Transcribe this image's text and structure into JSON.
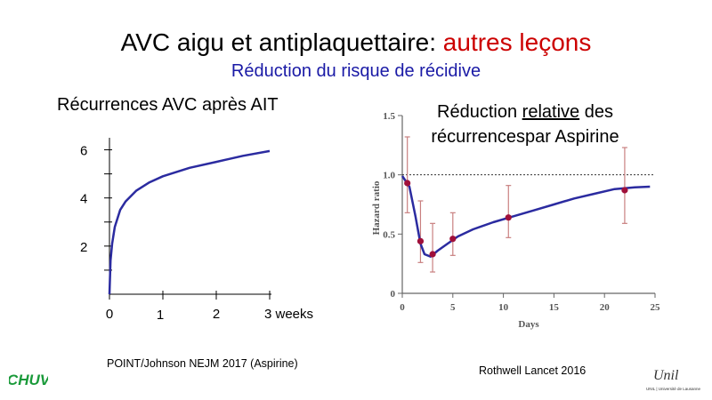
{
  "slide": {
    "title_main": "AVC aigu et antiplaquettaire: ",
    "title_highlight": "autres leçons",
    "subtitle": "Réduction du risque de récidive",
    "left_panel_title": "Récurrences AVC après AIT",
    "right_panel_title_pre": "Réduction ",
    "right_panel_title_underlined": "relative",
    "right_panel_title_post": " des récurrencespar Aspirine",
    "left_source": "POINT/Johnson NEJM 2017 (Aspirine)",
    "right_source": "Rothwell Lancet 2016"
  },
  "logos": {
    "chuv": "CHUV",
    "unil": "Unil",
    "unil_caption": "UNIL | Université de Lausanne"
  },
  "colors": {
    "curve": "#2b2ba0",
    "title_highlight": "#cc0000",
    "subtitle": "#1a1aa6",
    "points": "#a0103a",
    "error_bars": "#c98080"
  },
  "chart_data": [
    {
      "type": "line",
      "title": "Récurrences AVC après AIT",
      "x_tick_labels": [
        "0",
        "1",
        "2",
        "3 weeks"
      ],
      "x_ticks": [
        0,
        1,
        2,
        3
      ],
      "y_tick_labels": [
        "2",
        "4",
        "6"
      ],
      "y_ticks": [
        2,
        4,
        6
      ],
      "xlim": [
        0,
        3
      ],
      "ylim": [
        0,
        6.5
      ],
      "grid": false,
      "series": [
        {
          "x": [
            0,
            0.02,
            0.05,
            0.1,
            0.2,
            0.3,
            0.5,
            0.75,
            1.0,
            1.5,
            2.0,
            2.5,
            3.0
          ],
          "values": [
            0,
            1.4,
            2.1,
            2.8,
            3.5,
            3.85,
            4.3,
            4.65,
            4.9,
            5.25,
            5.5,
            5.75,
            5.95
          ]
        }
      ]
    },
    {
      "type": "line",
      "title": "Réduction relative des récurrencespar Aspirine",
      "xlabel": "Days",
      "ylabel": "Hazard ratio",
      "x_tick_labels": [
        "0",
        "5",
        "10",
        "15",
        "20",
        "25"
      ],
      "x_ticks": [
        0,
        5,
        10,
        15,
        20,
        25
      ],
      "y_tick_labels": [
        "0",
        "0.5",
        "1.0",
        "1.5"
      ],
      "y_ticks": [
        0,
        0.5,
        1.0,
        1.5
      ],
      "xlim": [
        0,
        25
      ],
      "ylim": [
        0,
        1.5
      ],
      "reference_line": 1.0,
      "grid": false,
      "series": [
        {
          "x": [
            0,
            0.7,
            1.3,
            1.8,
            2.2,
            2.8,
            3.5,
            4.5,
            5.5,
            7,
            9,
            11,
            13,
            15,
            17,
            19,
            21,
            23,
            24.5
          ],
          "values": [
            0.99,
            0.9,
            0.65,
            0.42,
            0.33,
            0.31,
            0.36,
            0.42,
            0.48,
            0.54,
            0.6,
            0.65,
            0.7,
            0.75,
            0.8,
            0.84,
            0.88,
            0.895,
            0.9
          ]
        }
      ],
      "points": {
        "x": [
          0.5,
          1.8,
          3.0,
          5.0,
          10.5,
          22.0
        ],
        "values": [
          0.93,
          0.44,
          0.33,
          0.46,
          0.64,
          0.87
        ],
        "lower": [
          0.68,
          0.26,
          0.18,
          0.32,
          0.47,
          0.59
        ],
        "upper": [
          1.32,
          0.78,
          0.59,
          0.68,
          0.91,
          1.23
        ]
      }
    }
  ]
}
